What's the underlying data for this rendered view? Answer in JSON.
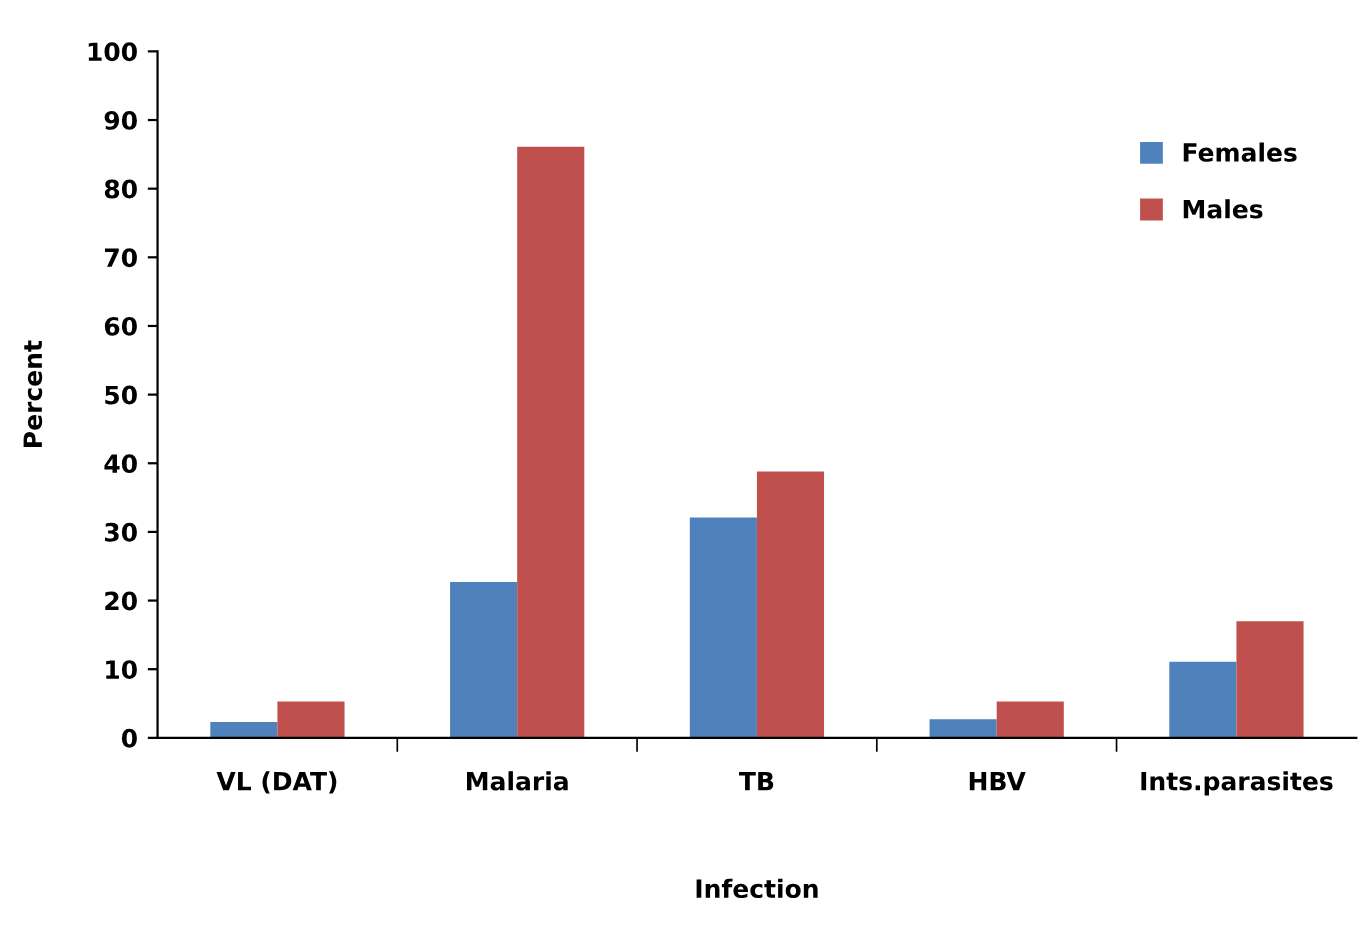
{
  "chart_data": {
    "type": "bar",
    "xlabel": "Infection",
    "ylabel": "Percent",
    "categories": [
      "VL (DAT)",
      "Malaria",
      "TB",
      "HBV",
      "Ints.parasites"
    ],
    "series": [
      {
        "name": "Females",
        "color": "#4f81bd",
        "values": [
          2.3,
          22.7,
          32.1,
          2.7,
          11.1
        ]
      },
      {
        "name": "Males",
        "color": "#c0504d",
        "values": [
          5.3,
          86.1,
          38.8,
          5.3,
          17.0
        ]
      }
    ],
    "ylim": [
      0,
      100
    ],
    "yticks": [
      0,
      10,
      20,
      30,
      40,
      50,
      60,
      70,
      80,
      90,
      100
    ],
    "grid": false,
    "legend": "top right"
  }
}
